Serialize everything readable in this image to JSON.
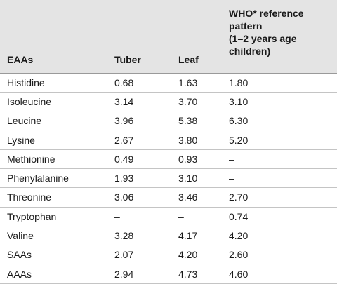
{
  "table": {
    "headers": {
      "col1": "EAAs",
      "col2": "Tuber",
      "col3": "Leaf",
      "col4_line1": "WHO* reference",
      "col4_line2": "pattern",
      "col4_line3": "(1–2 years age",
      "col4_line4": "children)"
    },
    "rows": [
      {
        "eaa": "Histidine",
        "tuber": "0.68",
        "leaf": "1.63",
        "who": "1.80"
      },
      {
        "eaa": "Isoleucine",
        "tuber": "3.14",
        "leaf": "3.70",
        "who": "3.10"
      },
      {
        "eaa": "Leucine",
        "tuber": "3.96",
        "leaf": "5.38",
        "who": "6.30"
      },
      {
        "eaa": "Lysine",
        "tuber": "2.67",
        "leaf": "3.80",
        "who": "5.20"
      },
      {
        "eaa": "Methionine",
        "tuber": "0.49",
        "leaf": "0.93",
        "who": "–"
      },
      {
        "eaa": "Phenylalanine",
        "tuber": "1.93",
        "leaf": "3.10",
        "who": "–"
      },
      {
        "eaa": "Threonine",
        "tuber": "3.06",
        "leaf": "3.46",
        "who": "2.70"
      },
      {
        "eaa": "Tryptophan",
        "tuber": "–",
        "leaf": "–",
        "who": "0.74"
      },
      {
        "eaa": "Valine",
        "tuber": "3.28",
        "leaf": "4.17",
        "who": "4.20"
      },
      {
        "eaa": "SAAs",
        "tuber": "2.07",
        "leaf": "4.20",
        "who": "2.60"
      },
      {
        "eaa": "AAAs",
        "tuber": "2.94",
        "leaf": "4.73",
        "who": "4.60"
      }
    ]
  }
}
